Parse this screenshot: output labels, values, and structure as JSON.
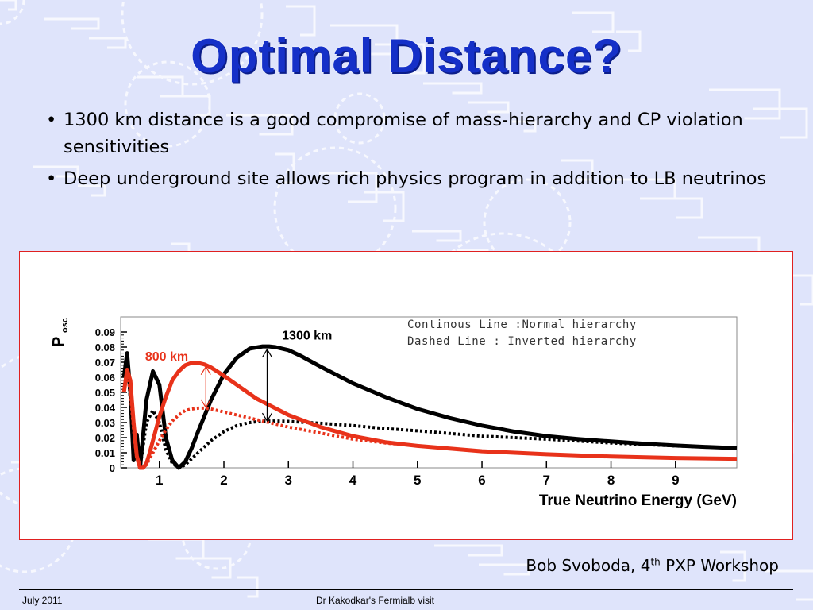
{
  "slide": {
    "title": "Optimal Distance?",
    "bullets": [
      {
        "text": "1300 km distance is a good compromise of mass-hierarchy and CP violation sensitivities"
      },
      {
        "text": "Deep underground site allows rich physics program in addition to LB neutrinos"
      }
    ],
    "credit": {
      "pre": "Bob Svoboda, 4",
      "sup": "th",
      "post": " PXP Workshop"
    },
    "footer_left": "July 2011",
    "footer_center": "Dr Kakodkar's Fermialb visit"
  },
  "colors": {
    "title": "#1530c8",
    "series_1300": "#000000",
    "series_800": "#e8321a",
    "frame": "#e02020"
  },
  "chart_data": {
    "type": "line",
    "xlabel": "True Neutrino Energy (GeV)",
    "ylabel": "P",
    "ylabel_sub": "osc",
    "xlim": [
      0.4,
      9.95
    ],
    "ylim": [
      0,
      0.1
    ],
    "xticks": [
      1,
      2,
      3,
      4,
      5,
      6,
      7,
      8,
      9
    ],
    "yticks": [
      0,
      0.01,
      0.02,
      0.03,
      0.04,
      0.05,
      0.06,
      0.07,
      0.08,
      0.09
    ],
    "ytick_labels": [
      "0",
      "0.01",
      "0.02",
      "0.03",
      "0.04",
      "0.05",
      "0.06",
      "0.07",
      "0.08",
      "0.09"
    ],
    "legend": [
      "Continous Line :Normal hierarchy",
      "Dashed Line : Inverted hierarchy"
    ],
    "annotations": [
      {
        "text": "1300 km",
        "x": 2.9,
        "y": 0.085,
        "color": "#000000"
      },
      {
        "text": "800 km",
        "x": 0.78,
        "y": 0.071,
        "color": "#e8321a"
      }
    ],
    "series": [
      {
        "name": "1300 km",
        "hierarchy": "normal",
        "color": "#000000",
        "style": "solid",
        "x": [
          0.45,
          0.5,
          0.55,
          0.6,
          0.65,
          0.7,
          0.8,
          0.9,
          1.0,
          1.1,
          1.2,
          1.3,
          1.4,
          1.5,
          1.6,
          1.8,
          2.0,
          2.2,
          2.4,
          2.6,
          2.7,
          2.8,
          3.0,
          3.2,
          3.5,
          4.0,
          4.5,
          5.0,
          5.5,
          6.0,
          6.5,
          7.0,
          7.5,
          8.0,
          8.5,
          9.0,
          9.5,
          9.95
        ],
        "y": [
          0.06,
          0.076,
          0.05,
          0.005,
          0.022,
          0.0,
          0.045,
          0.064,
          0.055,
          0.02,
          0.005,
          0.0,
          0.004,
          0.013,
          0.024,
          0.045,
          0.062,
          0.073,
          0.079,
          0.0805,
          0.0805,
          0.08,
          0.078,
          0.074,
          0.067,
          0.056,
          0.047,
          0.039,
          0.033,
          0.028,
          0.024,
          0.021,
          0.019,
          0.0175,
          0.016,
          0.0148,
          0.0138,
          0.013
        ]
      },
      {
        "name": "1300 km",
        "hierarchy": "inverted",
        "color": "#000000",
        "style": "dashed",
        "x": [
          0.45,
          0.5,
          0.55,
          0.6,
          0.65,
          0.7,
          0.8,
          0.9,
          1.0,
          1.1,
          1.2,
          1.3,
          1.4,
          1.6,
          1.8,
          2.0,
          2.2,
          2.4,
          2.6,
          2.8,
          3.0,
          3.5,
          4.0,
          4.5,
          5.0,
          6.0,
          7.0,
          8.0,
          9.0,
          9.95
        ],
        "y": [
          0.06,
          0.072,
          0.045,
          0.005,
          0.015,
          0.0,
          0.03,
          0.038,
          0.03,
          0.012,
          0.003,
          0.0,
          0.002,
          0.01,
          0.018,
          0.024,
          0.028,
          0.03,
          0.031,
          0.031,
          0.0308,
          0.0295,
          0.028,
          0.026,
          0.0245,
          0.021,
          0.019,
          0.0165,
          0.0145,
          0.013
        ]
      },
      {
        "name": "800 km",
        "hierarchy": "normal",
        "color": "#e8321a",
        "style": "solid",
        "x": [
          0.45,
          0.5,
          0.55,
          0.6,
          0.65,
          0.7,
          0.75,
          0.8,
          0.85,
          0.9,
          0.95,
          1.0,
          1.1,
          1.2,
          1.3,
          1.4,
          1.5,
          1.6,
          1.7,
          1.8,
          2.0,
          2.2,
          2.5,
          3.0,
          3.5,
          4.0,
          4.5,
          5.0,
          6.0,
          7.0,
          8.0,
          9.0,
          9.95
        ],
        "y": [
          0.05,
          0.065,
          0.058,
          0.03,
          0.008,
          0.0,
          0.0,
          0.003,
          0.01,
          0.018,
          0.026,
          0.034,
          0.047,
          0.058,
          0.064,
          0.068,
          0.0695,
          0.0695,
          0.0685,
          0.0665,
          0.061,
          0.055,
          0.046,
          0.035,
          0.027,
          0.021,
          0.017,
          0.0145,
          0.011,
          0.009,
          0.0075,
          0.0065,
          0.006
        ]
      },
      {
        "name": "800 km",
        "hierarchy": "inverted",
        "color": "#e8321a",
        "style": "dashed",
        "x": [
          0.45,
          0.5,
          0.55,
          0.6,
          0.65,
          0.7,
          0.75,
          0.8,
          0.9,
          1.0,
          1.1,
          1.2,
          1.3,
          1.4,
          1.5,
          1.6,
          1.7,
          1.8,
          2.0,
          2.2,
          2.5,
          3.0,
          3.5,
          4.0,
          4.5,
          5.0,
          6.0,
          7.0,
          8.0,
          9.0,
          9.95
        ],
        "y": [
          0.05,
          0.062,
          0.05,
          0.025,
          0.006,
          0.0,
          0.0,
          0.002,
          0.01,
          0.018,
          0.025,
          0.031,
          0.035,
          0.038,
          0.039,
          0.0395,
          0.0395,
          0.039,
          0.037,
          0.035,
          0.032,
          0.027,
          0.023,
          0.019,
          0.0165,
          0.0145,
          0.011,
          0.009,
          0.0075,
          0.0065,
          0.006
        ]
      }
    ]
  }
}
